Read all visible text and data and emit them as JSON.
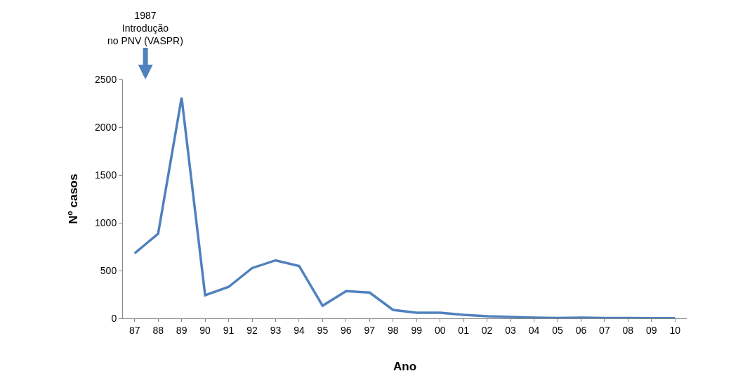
{
  "chart_data": {
    "type": "line",
    "xlabel": "Ano",
    "ylabel": "Nº casos",
    "categories": [
      "87",
      "88",
      "89",
      "90",
      "91",
      "92",
      "93",
      "94",
      "95",
      "96",
      "97",
      "98",
      "99",
      "00",
      "01",
      "02",
      "03",
      "04",
      "05",
      "06",
      "07",
      "08",
      "09",
      "10"
    ],
    "series": [
      {
        "color": "#4f81bd",
        "values": [
          680,
          885,
          2310,
          241,
          329,
          526,
          607,
          548,
          132,
          285,
          270,
          88,
          58,
          58,
          37,
          22,
          15,
          7,
          3,
          7,
          3,
          3,
          2,
          1
        ]
      }
    ],
    "ylim": [
      0,
      2500
    ],
    "yticks": [
      0,
      500,
      1000,
      1500,
      2000,
      2500
    ],
    "marker": "none",
    "line_style": "solid",
    "annotations": [
      "1987\nIntrodução\nno PNV (VASPR)"
    ]
  }
}
